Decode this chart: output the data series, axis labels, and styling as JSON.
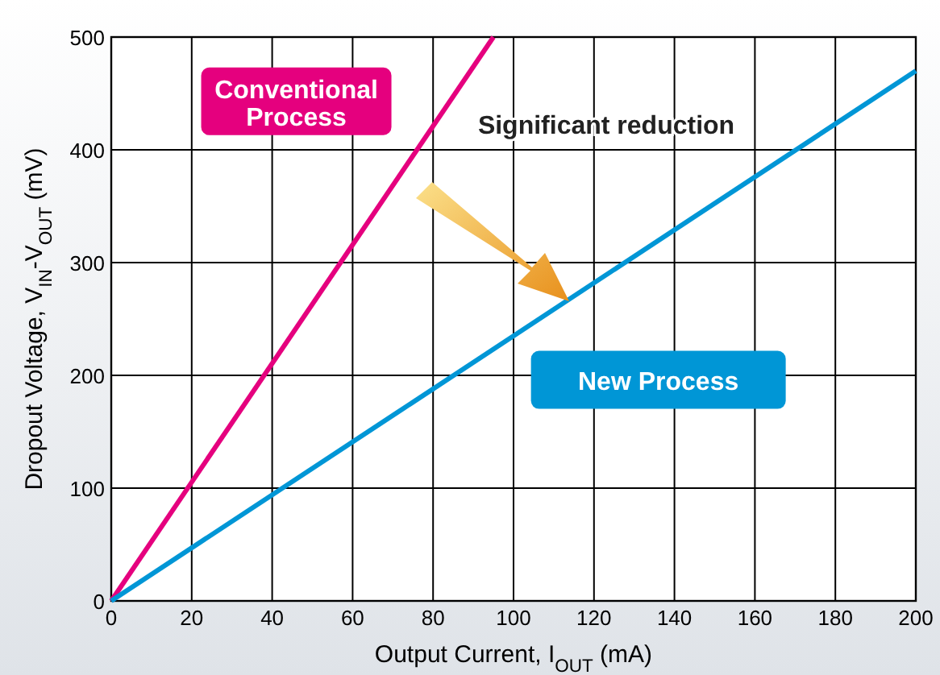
{
  "chart_data": {
    "type": "line",
    "xlabel": "Output Current, I$_{OUT}$ (mA)",
    "ylabel": "Dropout Voltage, V$_{IN}$-V$_{OUT}$ (mV)",
    "series": [
      {
        "name": "Conventional Process",
        "color": "#e5007e",
        "x": [
          0,
          95
        ],
        "values": [
          0,
          500
        ]
      },
      {
        "name": "New Process",
        "color": "#0096d6",
        "x": [
          0,
          200
        ],
        "values": [
          0,
          470
        ]
      }
    ],
    "annotations": [
      "Significant reduction"
    ],
    "xlim": [
      0,
      200
    ],
    "xticks": [
      0,
      20,
      40,
      60,
      80,
      100,
      120,
      140,
      160,
      180,
      200
    ],
    "ylim": [
      0,
      500
    ],
    "yticks": [
      0,
      100,
      200,
      300,
      400,
      500
    ],
    "grid": true,
    "marker": "none",
    "line_style": "solid"
  }
}
